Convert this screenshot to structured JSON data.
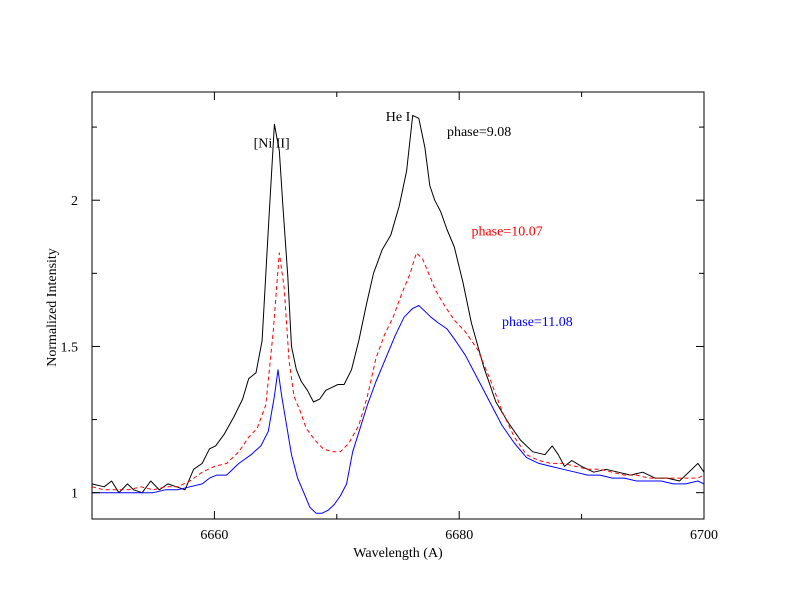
{
  "chart_data": {
    "type": "line",
    "xlabel": "Wavelength  (A)",
    "ylabel": "Normalized Intensity",
    "xlim": [
      6650,
      6700
    ],
    "ylim": [
      0.91,
      2.37
    ],
    "xticks": [
      6660,
      6680,
      6700
    ],
    "yticks": [
      1,
      1.5,
      2
    ],
    "yticks_text": [
      "1",
      "1.5",
      "2"
    ],
    "grid": false,
    "annotations": [
      {
        "text": "[Ni II]",
        "x": 6663.2,
        "y": 2.18,
        "color": "#000000"
      },
      {
        "text": "He I",
        "x": 6674.0,
        "y": 2.27,
        "color": "#000000"
      },
      {
        "text": "phase=9.08",
        "x": 6679.0,
        "y": 2.22,
        "color": "#000000"
      },
      {
        "text": "phase=10.07",
        "x": 6681.0,
        "y": 1.88,
        "color": "#ff0000"
      },
      {
        "text": "phase=11.08",
        "x": 6683.5,
        "y": 1.57,
        "color": "#0000ff"
      }
    ],
    "series": [
      {
        "color": "#000000",
        "dash": "solid",
        "x": [
          6650.0,
          6651.0,
          6651.6,
          6652.2,
          6652.9,
          6653.4,
          6654.1,
          6654.8,
          6655.5,
          6656.2,
          6656.9,
          6657.6,
          6658.3,
          6659.0,
          6659.6,
          6660.1,
          6660.8,
          6661.6,
          6662.3,
          6662.8,
          6663.4,
          6663.9,
          6664.4,
          6664.9,
          6665.3,
          6665.6,
          6666.0,
          6666.3,
          6666.7,
          6667.1,
          6667.6,
          6668.1,
          6668.6,
          6669.1,
          6669.6,
          6670.1,
          6670.6,
          6671.2,
          6671.8,
          6672.4,
          6673.0,
          6673.7,
          6674.4,
          6675.1,
          6675.7,
          6676.2,
          6676.7,
          6677.2,
          6677.6,
          6678.0,
          6678.5,
          6679.0,
          6679.6,
          6680.3,
          6681.0,
          6682.0,
          6683.0,
          6684.0,
          6685.0,
          6686.0,
          6687.0,
          6687.6,
          6688.1,
          6688.6,
          6689.2,
          6690.0,
          6691.0,
          6692.0,
          6693.0,
          6694.0,
          6695.0,
          6696.0,
          6697.0,
          6698.0,
          6699.0,
          6699.5,
          6700.0
        ],
        "y": [
          1.03,
          1.02,
          1.04,
          1.0,
          1.03,
          1.01,
          1.0,
          1.04,
          1.01,
          1.03,
          1.02,
          1.01,
          1.08,
          1.1,
          1.15,
          1.16,
          1.2,
          1.26,
          1.32,
          1.39,
          1.41,
          1.52,
          1.9,
          2.26,
          2.17,
          1.98,
          1.74,
          1.5,
          1.42,
          1.38,
          1.35,
          1.31,
          1.32,
          1.35,
          1.36,
          1.37,
          1.37,
          1.42,
          1.52,
          1.64,
          1.75,
          1.83,
          1.88,
          1.98,
          2.1,
          2.29,
          2.28,
          2.18,
          2.05,
          2.0,
          1.96,
          1.9,
          1.84,
          1.72,
          1.58,
          1.43,
          1.31,
          1.24,
          1.18,
          1.14,
          1.13,
          1.16,
          1.13,
          1.09,
          1.11,
          1.09,
          1.07,
          1.08,
          1.07,
          1.06,
          1.07,
          1.05,
          1.05,
          1.04,
          1.08,
          1.1,
          1.07
        ]
      },
      {
        "color": "#ff0000",
        "dash": "dashed",
        "x": [
          6650.0,
          6651.0,
          6652.0,
          6653.0,
          6654.0,
          6655.0,
          6656.0,
          6657.0,
          6658.0,
          6659.0,
          6660.0,
          6661.0,
          6662.0,
          6662.8,
          6663.5,
          6664.2,
          6664.8,
          6665.3,
          6665.7,
          6666.1,
          6666.5,
          6667.0,
          6667.5,
          6668.2,
          6668.9,
          6669.6,
          6670.3,
          6671.0,
          6671.8,
          6672.5,
          6673.2,
          6673.9,
          6674.6,
          6675.3,
          6676.0,
          6676.5,
          6677.0,
          6677.5,
          6678.1,
          6678.8,
          6679.6,
          6680.5,
          6681.5,
          6682.5,
          6683.5,
          6684.5,
          6685.5,
          6686.5,
          6687.5,
          6688.5,
          6689.5,
          6690.5,
          6691.5,
          6692.5,
          6693.5,
          6694.5,
          6695.5,
          6696.5,
          6697.5,
          6698.5,
          6699.5,
          6700.0
        ],
        "y": [
          1.02,
          1.01,
          1.01,
          1.01,
          1.02,
          1.01,
          1.02,
          1.02,
          1.04,
          1.07,
          1.09,
          1.1,
          1.14,
          1.19,
          1.22,
          1.3,
          1.55,
          1.82,
          1.7,
          1.45,
          1.33,
          1.28,
          1.22,
          1.18,
          1.15,
          1.14,
          1.14,
          1.17,
          1.23,
          1.33,
          1.46,
          1.54,
          1.6,
          1.68,
          1.75,
          1.82,
          1.8,
          1.75,
          1.69,
          1.64,
          1.59,
          1.55,
          1.49,
          1.39,
          1.28,
          1.19,
          1.13,
          1.11,
          1.1,
          1.1,
          1.09,
          1.08,
          1.08,
          1.07,
          1.06,
          1.06,
          1.05,
          1.05,
          1.05,
          1.05,
          1.05,
          1.06
        ]
      },
      {
        "color": "#0000ff",
        "dash": "solid",
        "x": [
          6650.0,
          6651.0,
          6652.0,
          6653.0,
          6654.0,
          6655.0,
          6656.0,
          6657.0,
          6658.0,
          6659.0,
          6659.6,
          6660.2,
          6661.0,
          6662.0,
          6663.0,
          6663.8,
          6664.4,
          6664.9,
          6665.2,
          6665.5,
          6665.9,
          6666.3,
          6666.8,
          6667.3,
          6667.8,
          6668.3,
          6668.8,
          6669.3,
          6669.8,
          6670.3,
          6670.8,
          6671.3,
          6671.9,
          6672.5,
          6673.2,
          6674.0,
          6674.8,
          6675.5,
          6676.2,
          6676.7,
          6677.2,
          6677.7,
          6678.3,
          6679.0,
          6679.7,
          6680.5,
          6681.5,
          6682.5,
          6683.5,
          6684.5,
          6685.5,
          6686.5,
          6687.5,
          6688.5,
          6689.5,
          6690.5,
          6691.5,
          6692.5,
          6693.5,
          6694.5,
          6695.5,
          6696.5,
          6697.5,
          6698.5,
          6699.5,
          6700.0
        ],
        "y": [
          1.0,
          1.0,
          1.0,
          1.0,
          1.0,
          1.0,
          1.01,
          1.01,
          1.02,
          1.03,
          1.05,
          1.06,
          1.06,
          1.1,
          1.13,
          1.16,
          1.21,
          1.33,
          1.42,
          1.33,
          1.23,
          1.13,
          1.05,
          1.0,
          0.95,
          0.93,
          0.93,
          0.94,
          0.96,
          0.99,
          1.03,
          1.14,
          1.22,
          1.3,
          1.38,
          1.46,
          1.54,
          1.6,
          1.63,
          1.64,
          1.62,
          1.6,
          1.58,
          1.56,
          1.52,
          1.47,
          1.39,
          1.31,
          1.23,
          1.17,
          1.12,
          1.1,
          1.09,
          1.08,
          1.07,
          1.06,
          1.06,
          1.05,
          1.05,
          1.04,
          1.04,
          1.04,
          1.03,
          1.03,
          1.04,
          1.03
        ]
      }
    ]
  }
}
